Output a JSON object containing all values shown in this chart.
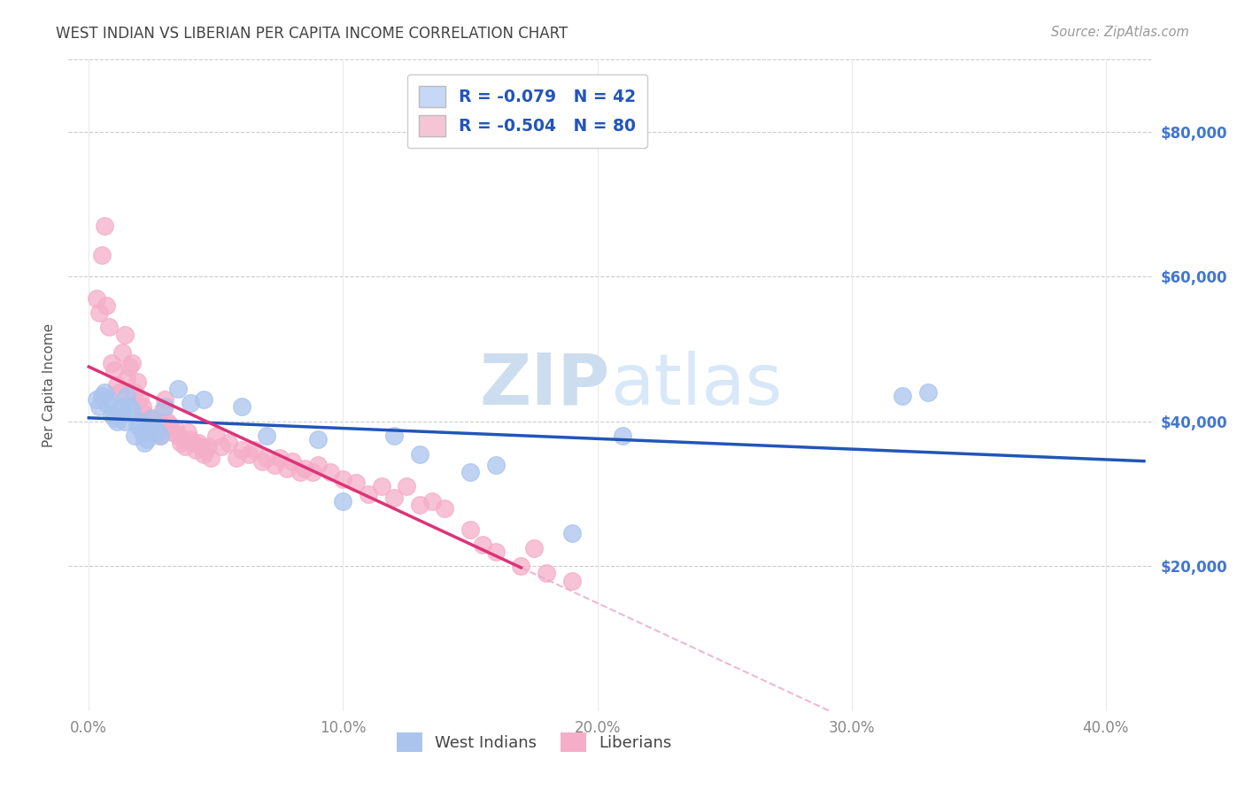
{
  "title": "WEST INDIAN VS LIBERIAN PER CAPITA INCOME CORRELATION CHART",
  "source": "Source: ZipAtlas.com",
  "ylabel": "Per Capita Income",
  "xlabel_ticks": [
    "0.0%",
    "10.0%",
    "20.0%",
    "30.0%",
    "40.0%"
  ],
  "xlabel_vals": [
    0.0,
    0.1,
    0.2,
    0.3,
    0.4
  ],
  "ytick_labels": [
    "$20,000",
    "$40,000",
    "$60,000",
    "$80,000"
  ],
  "ytick_vals": [
    20000,
    40000,
    60000,
    80000
  ],
  "xlim": [
    -0.008,
    0.418
  ],
  "ylim": [
    0,
    90000
  ],
  "west_indians_R": -0.079,
  "west_indians_N": 42,
  "liberians_R": -0.504,
  "liberians_N": 80,
  "wi_color": "#aac4ee",
  "lib_color": "#f5aec8",
  "wi_line_color": "#2255bb",
  "lib_line_color": "#dd3377",
  "lib_dash_color": "#e8a8c8",
  "legend_blue": "#c5d8f5",
  "legend_pink": "#f5c5d5",
  "watermark_color": "#ccddef",
  "grid_color": "#cccccc",
  "title_color": "#444444",
  "ylabel_color": "#555555",
  "right_tick_color": "#4477cc",
  "xtick_color": "#888888",
  "west_indians_x": [
    0.003,
    0.004,
    0.005,
    0.006,
    0.007,
    0.008,
    0.009,
    0.01,
    0.011,
    0.012,
    0.013,
    0.014,
    0.015,
    0.016,
    0.017,
    0.018,
    0.019,
    0.02,
    0.021,
    0.022,
    0.023,
    0.024,
    0.025,
    0.026,
    0.027,
    0.028,
    0.03,
    0.035,
    0.04,
    0.045,
    0.06,
    0.07,
    0.09,
    0.1,
    0.12,
    0.13,
    0.15,
    0.16,
    0.19,
    0.21,
    0.32,
    0.33
  ],
  "west_indians_y": [
    43000,
    42000,
    43500,
    44000,
    42500,
    43000,
    41000,
    40500,
    40000,
    41500,
    42000,
    40000,
    43500,
    42000,
    41500,
    38000,
    39500,
    40000,
    38500,
    37000,
    37500,
    39000,
    40500,
    39000,
    38500,
    38000,
    42000,
    44500,
    42500,
    43000,
    42000,
    38000,
    37500,
    29000,
    38000,
    35500,
    33000,
    34000,
    24500,
    38000,
    43500,
    44000
  ],
  "liberians_x": [
    0.003,
    0.004,
    0.005,
    0.006,
    0.007,
    0.008,
    0.009,
    0.01,
    0.011,
    0.012,
    0.013,
    0.014,
    0.015,
    0.016,
    0.017,
    0.018,
    0.019,
    0.02,
    0.021,
    0.022,
    0.023,
    0.024,
    0.025,
    0.026,
    0.027,
    0.028,
    0.029,
    0.03,
    0.031,
    0.032,
    0.033,
    0.034,
    0.035,
    0.036,
    0.037,
    0.038,
    0.039,
    0.04,
    0.041,
    0.042,
    0.043,
    0.044,
    0.045,
    0.046,
    0.047,
    0.048,
    0.05,
    0.052,
    0.055,
    0.058,
    0.06,
    0.063,
    0.065,
    0.068,
    0.07,
    0.073,
    0.075,
    0.078,
    0.08,
    0.083,
    0.085,
    0.088,
    0.09,
    0.095,
    0.1,
    0.105,
    0.11,
    0.115,
    0.12,
    0.125,
    0.13,
    0.135,
    0.14,
    0.15,
    0.155,
    0.16,
    0.17,
    0.175,
    0.18,
    0.19
  ],
  "liberians_y": [
    57000,
    55000,
    63000,
    67000,
    56000,
    53000,
    48000,
    47000,
    45000,
    44000,
    49500,
    52000,
    46000,
    47500,
    48000,
    44000,
    45500,
    43000,
    42000,
    41000,
    39500,
    40500,
    38500,
    39500,
    40000,
    38000,
    41500,
    43000,
    40000,
    39500,
    38500,
    39000,
    38000,
    37000,
    37500,
    36500,
    38500,
    37500,
    37000,
    36000,
    37000,
    36500,
    35500,
    36000,
    36500,
    35000,
    38000,
    36500,
    37000,
    35000,
    36000,
    35500,
    36000,
    34500,
    35000,
    34000,
    35000,
    33500,
    34500,
    33000,
    33500,
    33000,
    34000,
    33000,
    32000,
    31500,
    30000,
    31000,
    29500,
    31000,
    28500,
    29000,
    28000,
    25000,
    23000,
    22000,
    20000,
    22500,
    19000,
    18000
  ],
  "lib_trend_solid_end": 0.17,
  "lib_trend_start": 0.0,
  "lib_trend_end_dash": 0.42,
  "wi_trend_start": 0.0,
  "wi_trend_end": 0.415
}
